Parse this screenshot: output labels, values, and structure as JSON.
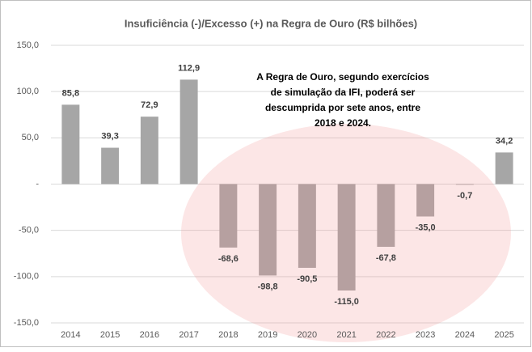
{
  "chart_data": {
    "type": "bar",
    "title": "Insuficiência (-)/Excesso (+) na Regra de Ouro (R$ bilhões)",
    "categories": [
      "2014",
      "2015",
      "2016",
      "2017",
      "2018",
      "2019",
      "2020",
      "2021",
      "2022",
      "2023",
      "2024",
      "2025"
    ],
    "values": [
      85.8,
      39.3,
      72.9,
      112.9,
      -68.6,
      -98.8,
      -90.5,
      -115.0,
      -67.8,
      -35.0,
      -0.7,
      34.2
    ],
    "value_labels": [
      "85,8",
      "39,3",
      "72,9",
      "112,9",
      "-68,6",
      "-98,8",
      "-90,5",
      "-115,0",
      "-67,8",
      "-35,0",
      "-0,7",
      "34,2"
    ],
    "color": "#a6a6a6",
    "ylim": [
      -150,
      150
    ],
    "yticks": [
      {
        "value": -150,
        "label": "-150,0"
      },
      {
        "value": -100,
        "label": "-100,0"
      },
      {
        "value": -50,
        "label": "-50,0"
      },
      {
        "value": 0,
        "label": "-"
      },
      {
        "value": 50,
        "label": "50,0"
      },
      {
        "value": 100,
        "label": "100,0"
      },
      {
        "value": 150,
        "label": "150,0"
      }
    ],
    "grid": true,
    "annotation": [
      "A Regra de Ouro, segundo exercícios",
      "de simulação da IFI, poderá ser",
      "descumprida por sete anos, entre",
      "2018 e 2024."
    ]
  }
}
